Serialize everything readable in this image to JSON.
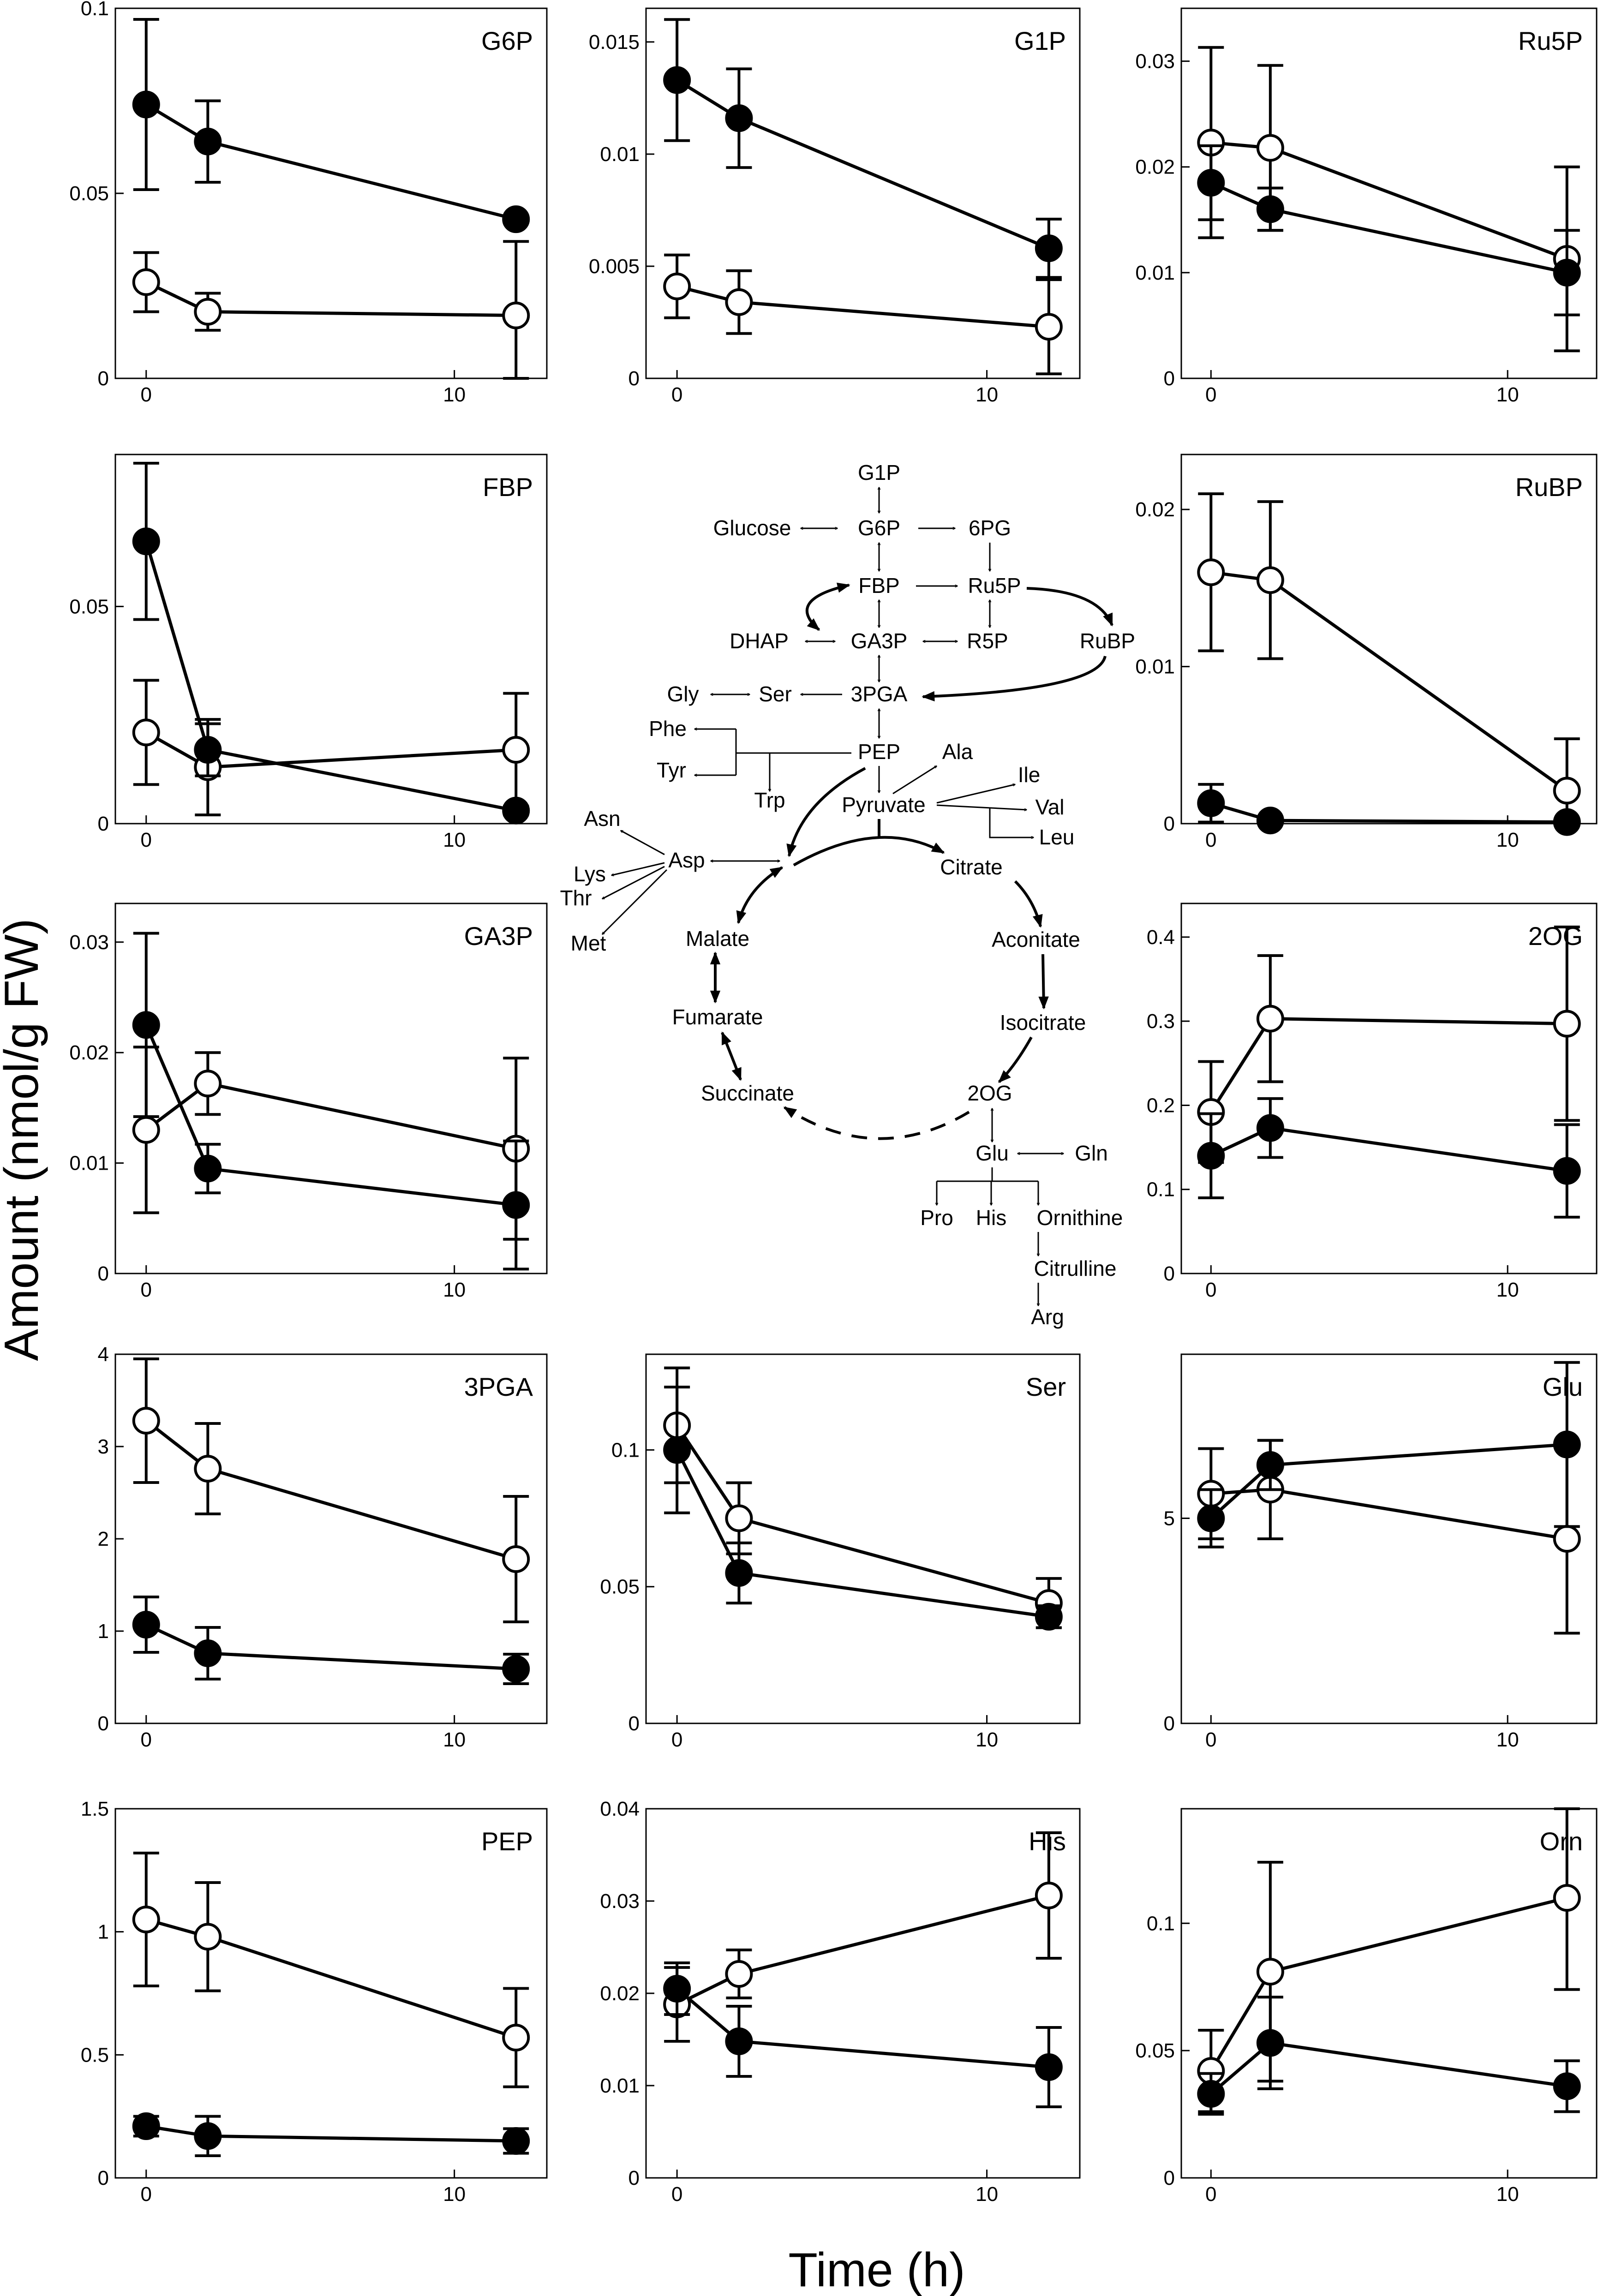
{
  "figure": {
    "ylabel": "Amount (nmol/g FW)",
    "xlabel": "Time (h)"
  },
  "chart_data": [
    {
      "type": "line",
      "title": "G6P",
      "x": [
        0,
        2,
        12
      ],
      "xlim": [
        -1,
        13
      ],
      "xticks": [
        0,
        10
      ],
      "ylim": [
        0,
        0.1
      ],
      "yticks": [
        0,
        0.05,
        0.1
      ],
      "ytick_labels": [
        "0",
        "0.05",
        "0.1"
      ],
      "series": [
        {
          "name": "filled",
          "values": [
            0.074,
            0.064,
            0.043
          ],
          "errors": [
            0.023,
            0.011,
            0.001
          ]
        },
        {
          "name": "open",
          "values": [
            0.026,
            0.018,
            0.017
          ],
          "errors": [
            0.008,
            0.005,
            0.02
          ]
        }
      ]
    },
    {
      "type": "line",
      "title": "G1P",
      "x": [
        0,
        2,
        12
      ],
      "xlim": [
        -1,
        13
      ],
      "xticks": [
        0,
        10
      ],
      "ylim": [
        0,
        0.0165
      ],
      "yticks": [
        0,
        0.005,
        0.01,
        0.015
      ],
      "ytick_labels": [
        "0",
        "0.005",
        "0.01",
        "0.015"
      ],
      "series": [
        {
          "name": "filled",
          "values": [
            0.0133,
            0.0116,
            0.0058
          ],
          "errors": [
            0.0027,
            0.0022,
            0.0013
          ]
        },
        {
          "name": "open",
          "values": [
            0.0041,
            0.0034,
            0.0023
          ],
          "errors": [
            0.0014,
            0.0014,
            0.0021
          ]
        }
      ]
    },
    {
      "type": "line",
      "title": "Ru5P",
      "x": [
        0,
        2,
        12
      ],
      "xlim": [
        -1,
        13
      ],
      "xticks": [
        0,
        10
      ],
      "ylim": [
        0,
        0.035
      ],
      "yticks": [
        0,
        0.01,
        0.02,
        0.03
      ],
      "ytick_labels": [
        "0",
        "0.01",
        "0.02",
        "0.03"
      ],
      "series": [
        {
          "name": "filled",
          "values": [
            0.0185,
            0.016,
            0.01
          ],
          "errors": [
            0.0035,
            0.002,
            0.004
          ]
        },
        {
          "name": "open",
          "values": [
            0.0223,
            0.0218,
            0.0113
          ],
          "errors": [
            0.009,
            0.0078,
            0.0087
          ]
        }
      ]
    },
    {
      "type": "line",
      "title": "FBP",
      "x": [
        0,
        2,
        12
      ],
      "xlim": [
        -1,
        13
      ],
      "xticks": [
        0,
        10
      ],
      "ylim": [
        0,
        0.085
      ],
      "yticks": [
        0,
        0.05
      ],
      "ytick_labels": [
        "0",
        "0.05"
      ],
      "series": [
        {
          "name": "filled",
          "values": [
            0.065,
            0.017,
            0.003
          ],
          "errors": [
            0.018,
            0.006,
            0.001
          ]
        },
        {
          "name": "open",
          "values": [
            0.021,
            0.013,
            0.017
          ],
          "errors": [
            0.012,
            0.011,
            0.013
          ]
        }
      ]
    },
    {
      "type": "line",
      "title": "RuBP",
      "x": [
        0,
        2,
        12
      ],
      "xlim": [
        -1,
        13
      ],
      "xticks": [
        0,
        10
      ],
      "ylim": [
        0,
        0.0235
      ],
      "yticks": [
        0,
        0.01,
        0.02
      ],
      "ytick_labels": [
        "0",
        "0.01",
        "0.02"
      ],
      "series": [
        {
          "name": "filled",
          "values": [
            0.0013,
            0.0002,
            0.0001
          ],
          "errors": [
            0.0012,
            0.0001,
            0.0001
          ]
        },
        {
          "name": "open",
          "values": [
            0.016,
            0.0155,
            0.0021
          ],
          "errors": [
            0.005,
            0.005,
            0.0033
          ]
        }
      ]
    },
    {
      "type": "line",
      "title": "GA3P",
      "x": [
        0,
        2,
        12
      ],
      "xlim": [
        -1,
        13
      ],
      "xticks": [
        0,
        10
      ],
      "ylim": [
        0,
        0.0335
      ],
      "yticks": [
        0,
        0.01,
        0.02,
        0.03
      ],
      "ytick_labels": [
        "0",
        "0.01",
        "0.02",
        "0.03"
      ],
      "series": [
        {
          "name": "filled",
          "values": [
            0.0225,
            0.0095,
            0.0062
          ],
          "errors": [
            0.0083,
            0.0022,
            0.0058
          ]
        },
        {
          "name": "open",
          "values": [
            0.013,
            0.0172,
            0.0113
          ],
          "errors": [
            0.0075,
            0.0028,
            0.0082
          ]
        }
      ]
    },
    {
      "type": "line",
      "title": "2OG",
      "x": [
        0,
        2,
        12
      ],
      "xlim": [
        -1,
        13
      ],
      "xticks": [
        0,
        10
      ],
      "ylim": [
        0,
        0.44
      ],
      "yticks": [
        0,
        0.1,
        0.2,
        0.3,
        0.4
      ],
      "ytick_labels": [
        "0",
        "0.1",
        "0.2",
        "0.3",
        "0.4"
      ],
      "series": [
        {
          "name": "filled",
          "values": [
            0.14,
            0.173,
            0.122
          ],
          "errors": [
            0.05,
            0.035,
            0.055
          ]
        },
        {
          "name": "open",
          "values": [
            0.192,
            0.303,
            0.297
          ],
          "errors": [
            0.06,
            0.075,
            0.115
          ]
        }
      ]
    },
    {
      "type": "line",
      "title": "3PGA",
      "x": [
        0,
        2,
        12
      ],
      "xlim": [
        -1,
        13
      ],
      "xticks": [
        0,
        10
      ],
      "ylim": [
        0,
        4
      ],
      "yticks": [
        0,
        1,
        2,
        3,
        4
      ],
      "ytick_labels": [
        "0",
        "1",
        "2",
        "3",
        "4"
      ],
      "series": [
        {
          "name": "filled",
          "values": [
            1.07,
            0.76,
            0.59
          ],
          "errors": [
            0.3,
            0.28,
            0.16
          ]
        },
        {
          "name": "open",
          "values": [
            3.28,
            2.76,
            1.78
          ],
          "errors": [
            0.67,
            0.49,
            0.68
          ]
        }
      ]
    },
    {
      "type": "line",
      "title": "Ser",
      "x": [
        0,
        2,
        12
      ],
      "xlim": [
        -1,
        13
      ],
      "xticks": [
        0,
        10
      ],
      "ylim": [
        0,
        0.135
      ],
      "yticks": [
        0,
        0.05,
        0.1
      ],
      "ytick_labels": [
        "0",
        "0.05",
        "0.1"
      ],
      "series": [
        {
          "name": "filled",
          "values": [
            0.1,
            0.055,
            0.039
          ],
          "errors": [
            0.023,
            0.011,
            0.004
          ]
        },
        {
          "name": "open",
          "values": [
            0.109,
            0.075,
            0.044
          ],
          "errors": [
            0.021,
            0.013,
            0.009
          ]
        }
      ]
    },
    {
      "type": "line",
      "title": "Glu",
      "x": [
        0,
        2,
        12
      ],
      "xlim": [
        -1,
        13
      ],
      "xticks": [
        0,
        10
      ],
      "ylim": [
        0,
        9
      ],
      "yticks": [
        0,
        5
      ],
      "ytick_labels": [
        "0",
        "5"
      ],
      "series": [
        {
          "name": "filled",
          "values": [
            5.0,
            6.3,
            6.8
          ],
          "errors": [
            0.7,
            0.6,
            2.0
          ]
        },
        {
          "name": "open",
          "values": [
            5.6,
            5.7,
            4.5
          ],
          "errors": [
            1.1,
            1.2,
            2.3
          ]
        }
      ]
    },
    {
      "type": "line",
      "title": "PEP",
      "x": [
        0,
        2,
        12
      ],
      "xlim": [
        -1,
        13
      ],
      "xticks": [
        0,
        10
      ],
      "ylim": [
        0,
        1.5
      ],
      "yticks": [
        0,
        0.5,
        1,
        1.5
      ],
      "ytick_labels": [
        "0",
        "0.5",
        "1",
        "1.5"
      ],
      "series": [
        {
          "name": "filled",
          "values": [
            0.21,
            0.17,
            0.15
          ],
          "errors": [
            0.04,
            0.08,
            0.05
          ]
        },
        {
          "name": "open",
          "values": [
            1.05,
            0.98,
            0.57
          ],
          "errors": [
            0.27,
            0.22,
            0.2
          ]
        }
      ]
    },
    {
      "type": "line",
      "title": "His",
      "x": [
        0,
        2,
        12
      ],
      "xlim": [
        -1,
        13
      ],
      "xticks": [
        0,
        10
      ],
      "ylim": [
        0,
        0.04
      ],
      "yticks": [
        0,
        0.01,
        0.02,
        0.03,
        0.04
      ],
      "ytick_labels": [
        "0",
        "0.01",
        "0.02",
        "0.03",
        "0.04"
      ],
      "series": [
        {
          "name": "filled",
          "values": [
            0.0205,
            0.0148,
            0.012
          ],
          "errors": [
            0.0028,
            0.0038,
            0.0043
          ]
        },
        {
          "name": "open",
          "values": [
            0.0188,
            0.0221,
            0.0306
          ],
          "errors": [
            0.004,
            0.0026,
            0.0068
          ]
        }
      ]
    },
    {
      "type": "line",
      "title": "Orn",
      "x": [
        0,
        2,
        12
      ],
      "xlim": [
        -1,
        13
      ],
      "xticks": [
        0,
        10
      ],
      "ylim": [
        0,
        0.145
      ],
      "yticks": [
        0,
        0.05,
        0.1
      ],
      "ytick_labels": [
        "0",
        "0.05",
        "0.1"
      ],
      "series": [
        {
          "name": "filled",
          "values": [
            0.033,
            0.053,
            0.036
          ],
          "errors": [
            0.008,
            0.018,
            0.01
          ]
        },
        {
          "name": "open",
          "values": [
            0.042,
            0.081,
            0.11
          ],
          "errors": [
            0.016,
            0.043,
            0.036
          ]
        }
      ]
    }
  ],
  "pathway": {
    "labels": [
      "G1P",
      "Glucose",
      "G6P",
      "6PG",
      "FBP",
      "Ru5P",
      "DHAP",
      "GA3P",
      "R5P",
      "RuBP",
      "Gly",
      "Ser",
      "3PGA",
      "Phe",
      "Tyr",
      "PEP",
      "Trp",
      "Ala",
      "Ile",
      "Val",
      "Leu",
      "Pyruvate",
      "Asn",
      "Asp",
      "Lys",
      "Thr",
      "Met",
      "Citrate",
      "Malate",
      "Aconitate",
      "Fumarate",
      "Isocitrate",
      "Succinate",
      "2OG",
      "Glu",
      "Gln",
      "Pro",
      "His",
      "Ornithine",
      "Citrulline",
      "Arg"
    ]
  }
}
